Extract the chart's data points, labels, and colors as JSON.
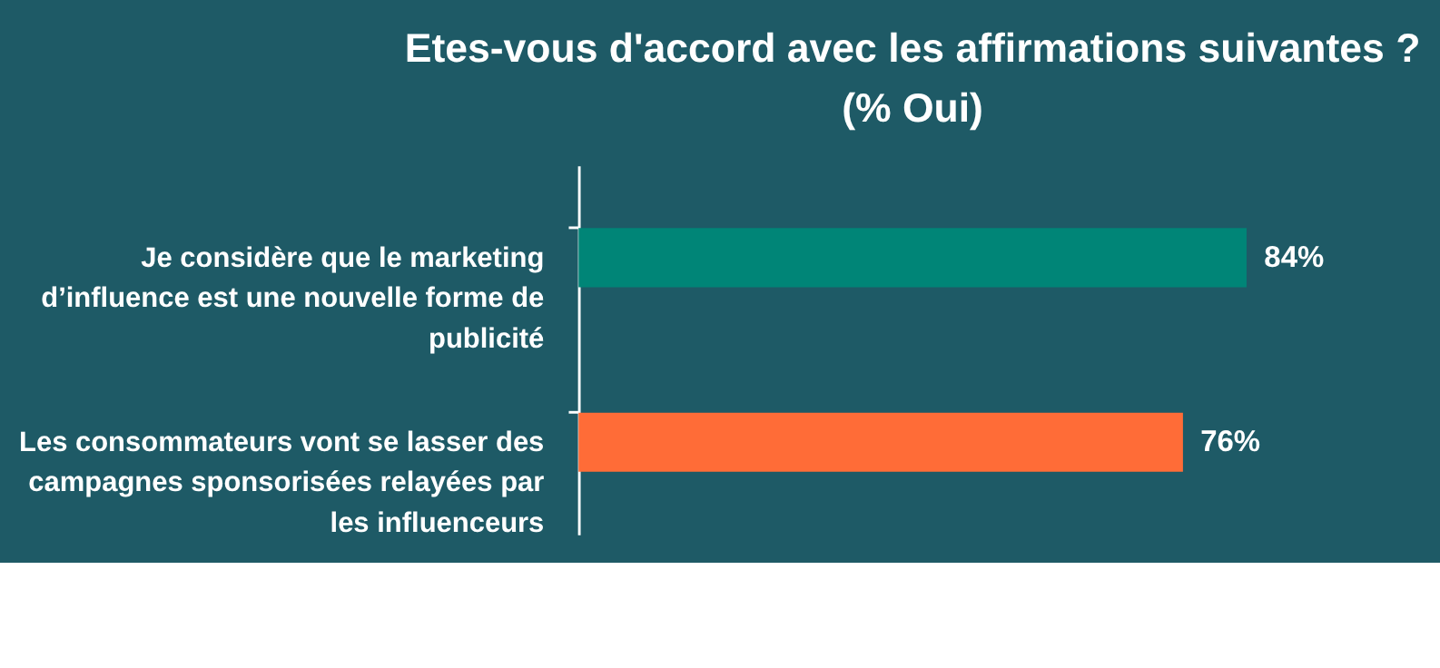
{
  "chart_data": {
    "type": "bar",
    "orientation": "horizontal",
    "title": "Etes-vous d'accord avec les affirmations suivantes ?",
    "subtitle": "(% Oui)",
    "categories": [
      "Je considère que le marketing d’influence est une nouvelle forme de publicité",
      "Les consommateurs vont se lasser des campagnes sponsorisées relayées par les influenceurs"
    ],
    "values": [
      84,
      76
    ],
    "value_labels": [
      "84%",
      "76%"
    ],
    "colors": [
      "#008577",
      "#ff6c37"
    ],
    "tick_labels": "y"
  }
}
